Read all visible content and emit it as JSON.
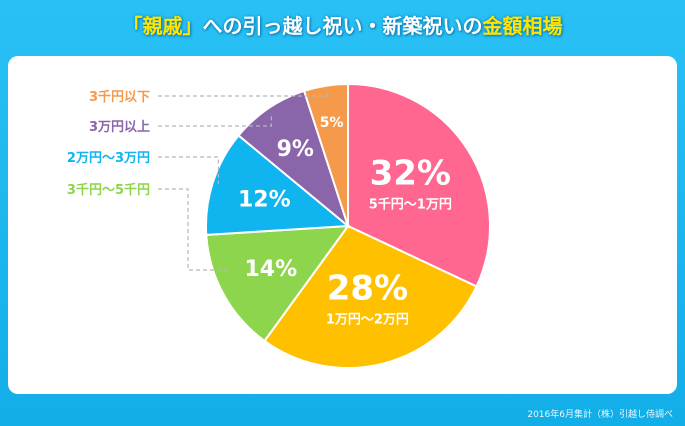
{
  "title": {
    "part1": "「親戚」",
    "part2": "への引っ越し祝い・新築祝いの",
    "part3": "金額相場"
  },
  "source": "2016年6月集計（株）引越し侍調べ",
  "chart_data": {
    "type": "pie",
    "slices": [
      {
        "label": "5千円〜1万円",
        "value": 32,
        "display": "32%",
        "color": "#ff6690"
      },
      {
        "label": "1万円〜2万円",
        "value": 28,
        "display": "28%",
        "color": "#ffc000"
      },
      {
        "label": "3千円〜5千円",
        "value": 14,
        "display": "14%",
        "color": "#8ed54e"
      },
      {
        "label": "2万円〜3万円",
        "value": 12,
        "display": "12%",
        "color": "#10b4ee"
      },
      {
        "label": "3万円以上",
        "value": 9,
        "display": "9%",
        "color": "#8a65aa"
      },
      {
        "label": "3千円以下",
        "value": 5,
        "display": "5%",
        "color": "#f59a4b"
      }
    ],
    "start": "top",
    "direction": "clockwise"
  }
}
